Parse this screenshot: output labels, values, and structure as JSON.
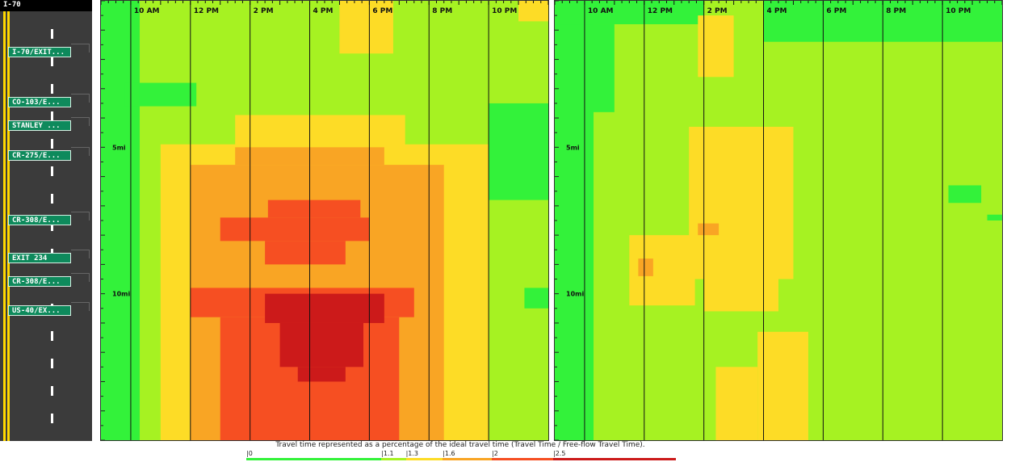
{
  "road": {
    "title": "I-70",
    "exits": [
      {
        "label": "I-70/EXIT...",
        "mile": 1.8
      },
      {
        "label": "CO-103/E...",
        "mile": 3.5
      },
      {
        "label": "STANLEY ...",
        "mile": 4.3
      },
      {
        "label": "CR-275/E...",
        "mile": 5.3
      },
      {
        "label": "CR-308/E...",
        "mile": 7.5
      },
      {
        "label": "EXIT 234",
        "mile": 8.8
      },
      {
        "label": "CR-308/E...",
        "mile": 9.6
      },
      {
        "label": "US-40/EX...",
        "mile": 10.6
      }
    ]
  },
  "colors": {
    "lt_1_1": "#33f23a",
    "1_1_to_1_3": "#a6f222",
    "1_3_to_1_6": "#fddc26",
    "1_6_to_2": "#f9a524",
    "2_to_2_5": "#f64f22",
    "gt_2_5": "#cc1a1a"
  },
  "legend": {
    "caption": "Travel time represented as a percentage of the ideal travel time (Travel Time / Free-flow Travel Time).",
    "ticks": [
      "0",
      "1.1",
      "1.3",
      "1.6",
      "2",
      "2.5"
    ]
  },
  "chart_data": [
    {
      "type": "heatmap",
      "x_ticks": [
        "10 AM",
        "12 PM",
        "2 PM",
        "4 PM",
        "6 PM",
        "8 PM",
        "10 PM"
      ],
      "x_range_hours": [
        9,
        24
      ],
      "y_ticks": [
        "5mi",
        "10mi"
      ],
      "y_range_miles": [
        0,
        15
      ],
      "value_scale": [
        0,
        1.1,
        1.3,
        1.6,
        2,
        2.5
      ],
      "regions": [
        {
          "level": 1,
          "hours": [
            9,
            24
          ],
          "miles": [
            0,
            15
          ]
        },
        {
          "level": 0,
          "hours": [
            9,
            10.3
          ],
          "miles": [
            0,
            15
          ]
        },
        {
          "level": 0,
          "hours": [
            9.8,
            12.2
          ],
          "miles": [
            2.8,
            3.6
          ]
        },
        {
          "level": 0,
          "hours": [
            22,
            24
          ],
          "miles": [
            3.5,
            6.8
          ]
        },
        {
          "level": 0,
          "hours": [
            23.2,
            24
          ],
          "miles": [
            9.8,
            10.5
          ]
        },
        {
          "level": 2,
          "hours": [
            17,
            18.8
          ],
          "miles": [
            0,
            1.8
          ]
        },
        {
          "level": 2,
          "hours": [
            23,
            24
          ],
          "miles": [
            0,
            0.7
          ]
        },
        {
          "level": 2,
          "hours": [
            11,
            22
          ],
          "miles": [
            4.9,
            15
          ]
        },
        {
          "level": 2,
          "hours": [
            13.5,
            19.2
          ],
          "miles": [
            3.9,
            5
          ]
        },
        {
          "level": 3,
          "hours": [
            12,
            20.5
          ],
          "miles": [
            5.6,
            15
          ]
        },
        {
          "level": 3,
          "hours": [
            13.5,
            18.5
          ],
          "miles": [
            5.0,
            5.6
          ]
        },
        {
          "level": 4,
          "hours": [
            13,
            18
          ],
          "miles": [
            7.4,
            8.2
          ]
        },
        {
          "level": 4,
          "hours": [
            14.6,
            17.7
          ],
          "miles": [
            6.8,
            7.4
          ]
        },
        {
          "level": 4,
          "hours": [
            14.5,
            17.2
          ],
          "miles": [
            8.2,
            9.0
          ]
        },
        {
          "level": 4,
          "hours": [
            12,
            19.5
          ],
          "miles": [
            9.8,
            10.8
          ]
        },
        {
          "level": 4,
          "hours": [
            13,
            19
          ],
          "miles": [
            10.8,
            15
          ]
        },
        {
          "level": 5,
          "hours": [
            14.5,
            18.5
          ],
          "miles": [
            10.0,
            11.0
          ]
        },
        {
          "level": 5,
          "hours": [
            15,
            17.8
          ],
          "miles": [
            11.0,
            12.5
          ]
        },
        {
          "level": 5,
          "hours": [
            15.6,
            17.2
          ],
          "miles": [
            12.5,
            13.0
          ]
        }
      ]
    },
    {
      "type": "heatmap",
      "x_ticks": [
        "10 AM",
        "12 PM",
        "2 PM",
        "4 PM",
        "6 PM",
        "8 PM",
        "10 PM"
      ],
      "x_range_hours": [
        9,
        24
      ],
      "y_ticks": [
        "5mi",
        "10mi"
      ],
      "y_range_miles": [
        0,
        15
      ],
      "value_scale": [
        0,
        1.1,
        1.3,
        1.6,
        2,
        2.5
      ],
      "regions": [
        {
          "level": 1,
          "hours": [
            9,
            24
          ],
          "miles": [
            0,
            15
          ]
        },
        {
          "level": 0,
          "hours": [
            9,
            10.3
          ],
          "miles": [
            0,
            15
          ]
        },
        {
          "level": 0,
          "hours": [
            9,
            14
          ],
          "miles": [
            0,
            0.8
          ]
        },
        {
          "level": 0,
          "hours": [
            16,
            24
          ],
          "miles": [
            0,
            1.4
          ]
        },
        {
          "level": 0,
          "hours": [
            9,
            11
          ],
          "miles": [
            0.8,
            3.8
          ]
        },
        {
          "level": 0,
          "hours": [
            22.2,
            23.3
          ],
          "miles": [
            6.3,
            6.9
          ]
        },
        {
          "level": 0,
          "hours": [
            23.5,
            24
          ],
          "miles": [
            7.3,
            7.5
          ]
        },
        {
          "level": 2,
          "hours": [
            13.8,
            15
          ],
          "miles": [
            0.5,
            2.6
          ]
        },
        {
          "level": 2,
          "hours": [
            13.5,
            17
          ],
          "miles": [
            4.3,
            9.5
          ]
        },
        {
          "level": 2,
          "hours": [
            11.5,
            13.7
          ],
          "miles": [
            8.0,
            10.4
          ]
        },
        {
          "level": 2,
          "hours": [
            14,
            16.5
          ],
          "miles": [
            9.3,
            10.6
          ]
        },
        {
          "level": 2,
          "hours": [
            15.8,
            17.5
          ],
          "miles": [
            11.3,
            15
          ]
        },
        {
          "level": 2,
          "hours": [
            14.4,
            15.8
          ],
          "miles": [
            12.5,
            15
          ]
        },
        {
          "level": 3,
          "hours": [
            11.8,
            12.3
          ],
          "miles": [
            8.8,
            9.4
          ]
        },
        {
          "level": 3,
          "hours": [
            13.8,
            14.5
          ],
          "miles": [
            7.6,
            8.0
          ]
        }
      ]
    }
  ]
}
